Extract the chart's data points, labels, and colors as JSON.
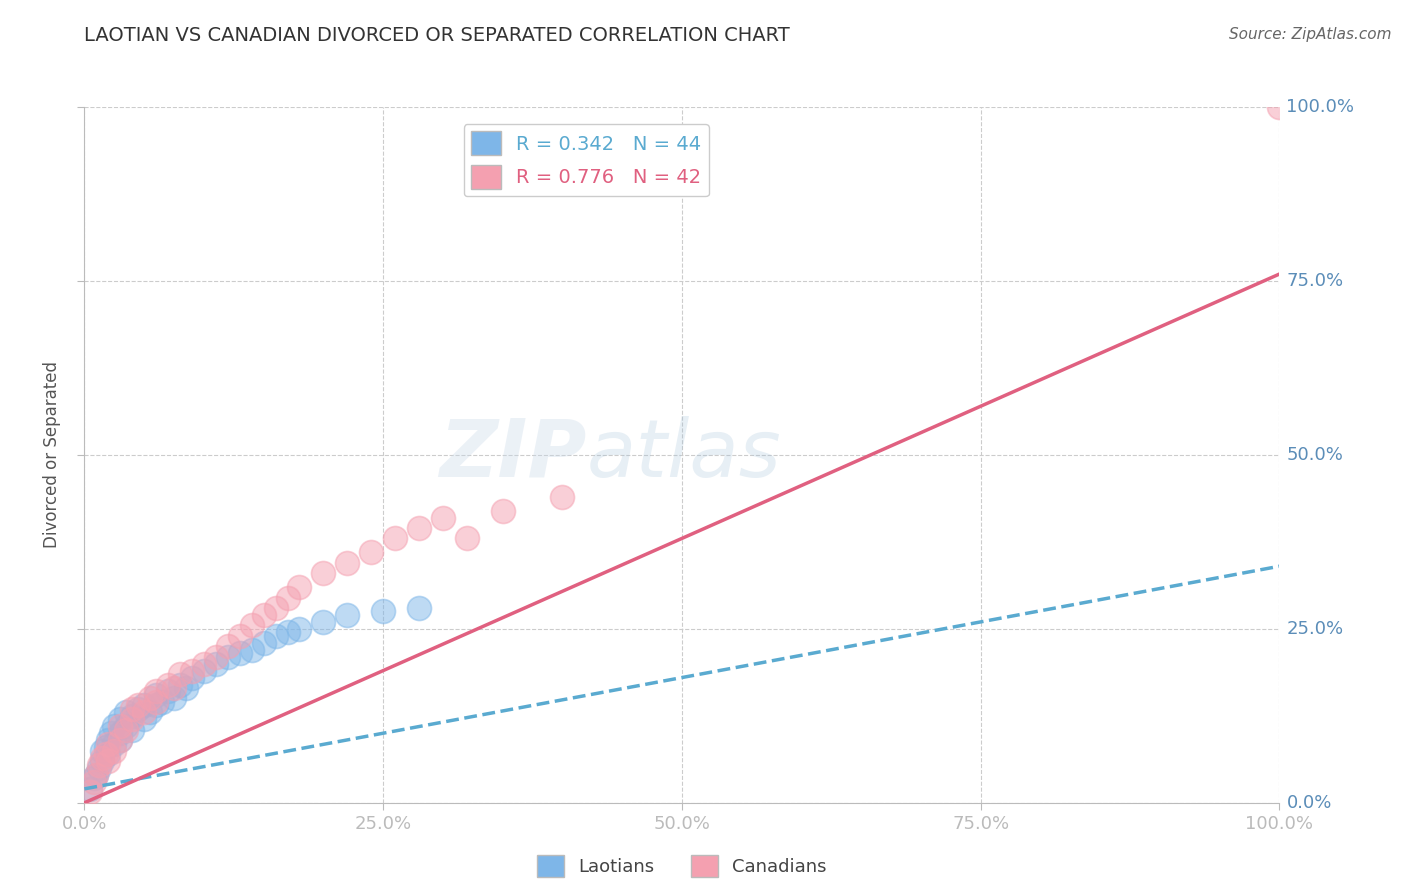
{
  "title": "LAOTIAN VS CANADIAN DIVORCED OR SEPARATED CORRELATION CHART",
  "source": "Source: ZipAtlas.com",
  "ylabel": "Divorced or Separated",
  "xlim": [
    0,
    100
  ],
  "ylim": [
    0,
    100
  ],
  "xticks": [
    0,
    25,
    50,
    75,
    100
  ],
  "yticks": [
    0,
    25,
    50,
    75,
    100
  ],
  "xticklabels": [
    "0.0%",
    "25.0%",
    "50.0%",
    "75.0%",
    "100.0%"
  ],
  "yticklabels": [
    "0.0%",
    "25.0%",
    "50.0%",
    "75.0%",
    "100.0%"
  ],
  "laotian_color": "#7EB6E8",
  "canadian_color": "#F4A0B0",
  "laotian_line_color": "#5AAAD0",
  "canadian_line_color": "#E06080",
  "laotian_R": 0.342,
  "laotian_N": 44,
  "canadian_R": 0.776,
  "canadian_N": 42,
  "watermark_zip": "ZIP",
  "watermark_atlas": "atlas",
  "background_color": "#ffffff",
  "grid_color": "#cccccc",
  "tick_color": "#5B8DB8",
  "title_color": "#333333",
  "laotian_line_x": [
    0,
    100
  ],
  "laotian_line_y": [
    2.0,
    34.0
  ],
  "canadian_line_x": [
    0,
    100
  ],
  "canadian_line_y": [
    0.0,
    76.0
  ],
  "laotian_points_x": [
    0.5,
    0.8,
    1.0,
    1.2,
    1.5,
    1.5,
    1.8,
    2.0,
    2.0,
    2.2,
    2.5,
    2.5,
    3.0,
    3.0,
    3.0,
    3.5,
    3.5,
    4.0,
    4.0,
    4.5,
    5.0,
    5.0,
    5.5,
    6.0,
    6.0,
    6.5,
    7.0,
    7.5,
    8.0,
    8.5,
    9.0,
    10.0,
    11.0,
    12.0,
    13.0,
    14.0,
    15.0,
    16.0,
    17.0,
    18.0,
    20.0,
    22.0,
    25.0,
    28.0
  ],
  "laotian_points_y": [
    2.0,
    3.5,
    4.0,
    5.0,
    6.0,
    7.5,
    8.0,
    7.0,
    9.0,
    10.0,
    8.5,
    11.0,
    9.0,
    10.0,
    12.0,
    11.0,
    13.0,
    10.5,
    12.5,
    13.5,
    12.0,
    14.0,
    13.0,
    14.0,
    15.5,
    14.5,
    16.0,
    15.0,
    17.0,
    16.5,
    18.0,
    19.0,
    20.0,
    21.0,
    21.5,
    22.0,
    23.0,
    24.0,
    24.5,
    25.0,
    26.0,
    27.0,
    27.5,
    28.0
  ],
  "canadian_points_x": [
    0.5,
    0.8,
    1.0,
    1.2,
    1.5,
    1.8,
    2.0,
    2.0,
    2.5,
    3.0,
    3.0,
    3.5,
    4.0,
    4.0,
    4.5,
    5.0,
    5.5,
    6.0,
    6.0,
    7.0,
    7.5,
    8.0,
    9.0,
    10.0,
    11.0,
    12.0,
    13.0,
    14.0,
    15.0,
    16.0,
    17.0,
    18.0,
    20.0,
    22.0,
    24.0,
    26.0,
    28.0,
    30.0,
    32.0,
    35.0,
    40.0,
    100.0
  ],
  "canadian_points_y": [
    1.5,
    3.0,
    4.0,
    5.5,
    6.5,
    7.0,
    6.0,
    8.5,
    7.5,
    9.0,
    11.0,
    10.5,
    12.0,
    13.5,
    14.0,
    13.0,
    15.0,
    14.5,
    16.0,
    17.0,
    16.5,
    18.5,
    19.0,
    20.0,
    21.0,
    22.5,
    24.0,
    25.5,
    27.0,
    28.0,
    29.5,
    31.0,
    33.0,
    34.5,
    36.0,
    38.0,
    39.5,
    41.0,
    38.0,
    42.0,
    44.0,
    100.0
  ]
}
